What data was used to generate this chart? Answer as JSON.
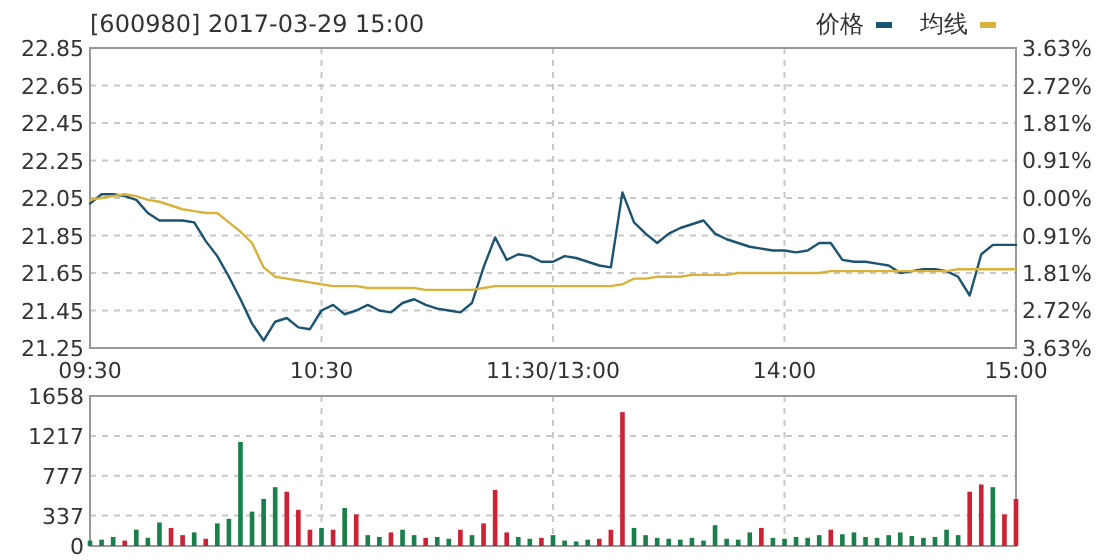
{
  "chart_data": [
    {
      "type": "line",
      "title": "[600980] 2017-03-29 15:00",
      "categories": [
        "09:30",
        null,
        null,
        null,
        null,
        null,
        null,
        null,
        null,
        null,
        null,
        null,
        null,
        null,
        null,
        null,
        null,
        null,
        null,
        null,
        "10:30",
        null,
        null,
        null,
        null,
        null,
        null,
        null,
        null,
        null,
        null,
        null,
        null,
        null,
        null,
        null,
        null,
        null,
        null,
        null,
        "11:30/13:00",
        null,
        null,
        null,
        null,
        null,
        null,
        null,
        null,
        null,
        null,
        null,
        null,
        null,
        null,
        null,
        null,
        null,
        null,
        null,
        "14:00",
        null,
        null,
        null,
        null,
        null,
        null,
        null,
        null,
        null,
        null,
        null,
        null,
        null,
        null,
        null,
        null,
        null,
        null,
        null,
        "15:00"
      ],
      "ylim": [
        21.25,
        22.85
      ],
      "yticks": [
        21.25,
        21.45,
        21.65,
        21.85,
        22.05,
        22.25,
        22.45,
        22.65,
        22.85
      ],
      "y2lim": [
        -3.63,
        3.63
      ],
      "y2ticks": [
        {
          "value": -3.63,
          "label": "3.63%"
        },
        {
          "value": -2.72,
          "label": "2.72%"
        },
        {
          "value": -1.81,
          "label": "1.81%"
        },
        {
          "value": -0.91,
          "label": "0.91%"
        },
        {
          "value": 0,
          "label": "0.00%"
        },
        {
          "value": 0.91,
          "label": "0.91%"
        },
        {
          "value": 1.81,
          "label": "1.81%"
        },
        {
          "value": 2.72,
          "label": "2.72%"
        },
        {
          "value": 3.63,
          "label": "3.63%"
        }
      ],
      "grid": true,
      "legend": "top right",
      "series": [
        {
          "name": "价格",
          "color": "#1b5470",
          "values": [
            22.02,
            22.07,
            22.07,
            22.06,
            22.04,
            21.97,
            21.93,
            21.93,
            21.93,
            21.92,
            21.82,
            21.74,
            21.63,
            21.51,
            21.38,
            21.29,
            21.39,
            21.41,
            21.36,
            21.35,
            21.45,
            21.48,
            21.43,
            21.45,
            21.48,
            21.45,
            21.44,
            21.49,
            21.51,
            21.48,
            21.46,
            21.45,
            21.44,
            21.49,
            21.68,
            21.84,
            21.72,
            21.75,
            21.74,
            21.71,
            21.71,
            21.74,
            21.73,
            21.71,
            21.69,
            21.68,
            22.08,
            21.92,
            21.86,
            21.81,
            21.86,
            21.89,
            21.91,
            21.93,
            21.86,
            21.83,
            21.81,
            21.79,
            21.78,
            21.77,
            21.77,
            21.76,
            21.77,
            21.81,
            21.81,
            21.72,
            21.71,
            21.71,
            21.7,
            21.69,
            21.65,
            21.66,
            21.67,
            21.67,
            21.66,
            21.63,
            21.53,
            21.75,
            21.8,
            21.8,
            21.8
          ]
        },
        {
          "name": "均线",
          "color": "#d8b23a",
          "values": [
            22.04,
            22.05,
            22.06,
            22.07,
            22.06,
            22.04,
            22.03,
            22.01,
            21.99,
            21.98,
            21.97,
            21.97,
            21.92,
            21.87,
            21.81,
            21.68,
            21.63,
            21.62,
            21.61,
            21.6,
            21.59,
            21.58,
            21.58,
            21.58,
            21.57,
            21.57,
            21.57,
            21.57,
            21.57,
            21.56,
            21.56,
            21.56,
            21.56,
            21.56,
            21.57,
            21.58,
            21.58,
            21.58,
            21.58,
            21.58,
            21.58,
            21.58,
            21.58,
            21.58,
            21.58,
            21.58,
            21.59,
            21.62,
            21.62,
            21.63,
            21.63,
            21.63,
            21.64,
            21.64,
            21.64,
            21.64,
            21.65,
            21.65,
            21.65,
            21.65,
            21.65,
            21.65,
            21.65,
            21.65,
            21.66,
            21.66,
            21.66,
            21.66,
            21.66,
            21.66,
            21.66,
            21.66,
            21.66,
            21.66,
            21.66,
            21.67,
            21.67,
            21.67,
            21.67,
            21.67,
            21.67
          ]
        }
      ]
    },
    {
      "type": "bar",
      "categories": [
        null,
        null,
        null,
        null,
        null,
        null,
        null,
        null,
        null,
        null,
        null,
        null,
        null,
        null,
        null,
        null,
        null,
        null,
        null,
        null,
        null,
        null,
        null,
        null,
        null,
        null,
        null,
        null,
        null,
        null,
        null,
        null,
        null,
        null,
        null,
        null,
        null,
        null,
        null,
        null,
        null,
        null,
        null,
        null,
        null,
        null,
        null,
        null,
        null,
        null,
        null,
        null,
        null,
        null,
        null,
        null,
        null,
        null,
        null,
        null,
        null,
        null,
        null,
        null,
        null,
        null,
        null,
        null,
        null,
        null,
        null,
        null,
        null,
        null,
        null,
        null,
        null,
        null,
        null,
        null,
        null
      ],
      "ylim": [
        0,
        1658
      ],
      "yticks": [
        0,
        337,
        777,
        1217,
        1658
      ],
      "grid": true,
      "tick_labels": "y",
      "values": [
        60,
        70,
        100,
        60,
        180,
        90,
        260,
        200,
        120,
        150,
        80,
        250,
        300,
        1150,
        380,
        520,
        650,
        600,
        400,
        180,
        200,
        180,
        420,
        350,
        120,
        100,
        150,
        180,
        120,
        90,
        100,
        80,
        180,
        120,
        250,
        620,
        150,
        100,
        80,
        90,
        120,
        60,
        50,
        70,
        80,
        180,
        1480,
        200,
        120,
        90,
        80,
        70,
        90,
        60,
        230,
        80,
        70,
        150,
        200,
        90,
        80,
        100,
        90,
        120,
        180,
        130,
        150,
        100,
        90,
        120,
        150,
        110,
        90,
        100,
        180,
        120,
        600,
        680,
        650,
        350,
        520
      ],
      "colors": [
        "#1a7f4b",
        "#1a7f4b",
        "#1a7f4b",
        "#cc2233",
        "#1a7f4b",
        "#1a7f4b",
        "#1a7f4b",
        "#cc2233",
        "#cc2233",
        "#1a7f4b",
        "#cc2233",
        "#1a7f4b",
        "#1a7f4b",
        "#1a7f4b",
        "#1a7f4b",
        "#1a7f4b",
        "#1a7f4b",
        "#cc2233",
        "#cc2233",
        "#cc2233",
        "#1a7f4b",
        "#cc2233",
        "#1a7f4b",
        "#cc2233",
        "#1a7f4b",
        "#1a7f4b",
        "#cc2233",
        "#1a7f4b",
        "#1a7f4b",
        "#cc2233",
        "#1a7f4b",
        "#1a7f4b",
        "#cc2233",
        "#1a7f4b",
        "#cc2233",
        "#cc2233",
        "#cc2233",
        "#1a7f4b",
        "#1a7f4b",
        "#cc2233",
        "#1a7f4b",
        "#1a7f4b",
        "#1a7f4b",
        "#1a7f4b",
        "#cc2233",
        "#cc2233",
        "#cc2233",
        "#1a7f4b",
        "#1a7f4b",
        "#1a7f4b",
        "#1a7f4b",
        "#1a7f4b",
        "#1a7f4b",
        "#1a7f4b",
        "#1a7f4b",
        "#1a7f4b",
        "#1a7f4b",
        "#1a7f4b",
        "#cc2233",
        "#1a7f4b",
        "#1a7f4b",
        "#1a7f4b",
        "#1a7f4b",
        "#1a7f4b",
        "#cc2233",
        "#1a7f4b",
        "#1a7f4b",
        "#1a7f4b",
        "#1a7f4b",
        "#1a7f4b",
        "#1a7f4b",
        "#1a7f4b",
        "#1a7f4b",
        "#1a7f4b",
        "#1a7f4b",
        "#1a7f4b",
        "#cc2233",
        "#cc2233",
        "#1a7f4b",
        "#cc2233",
        "#cc2233"
      ]
    }
  ]
}
